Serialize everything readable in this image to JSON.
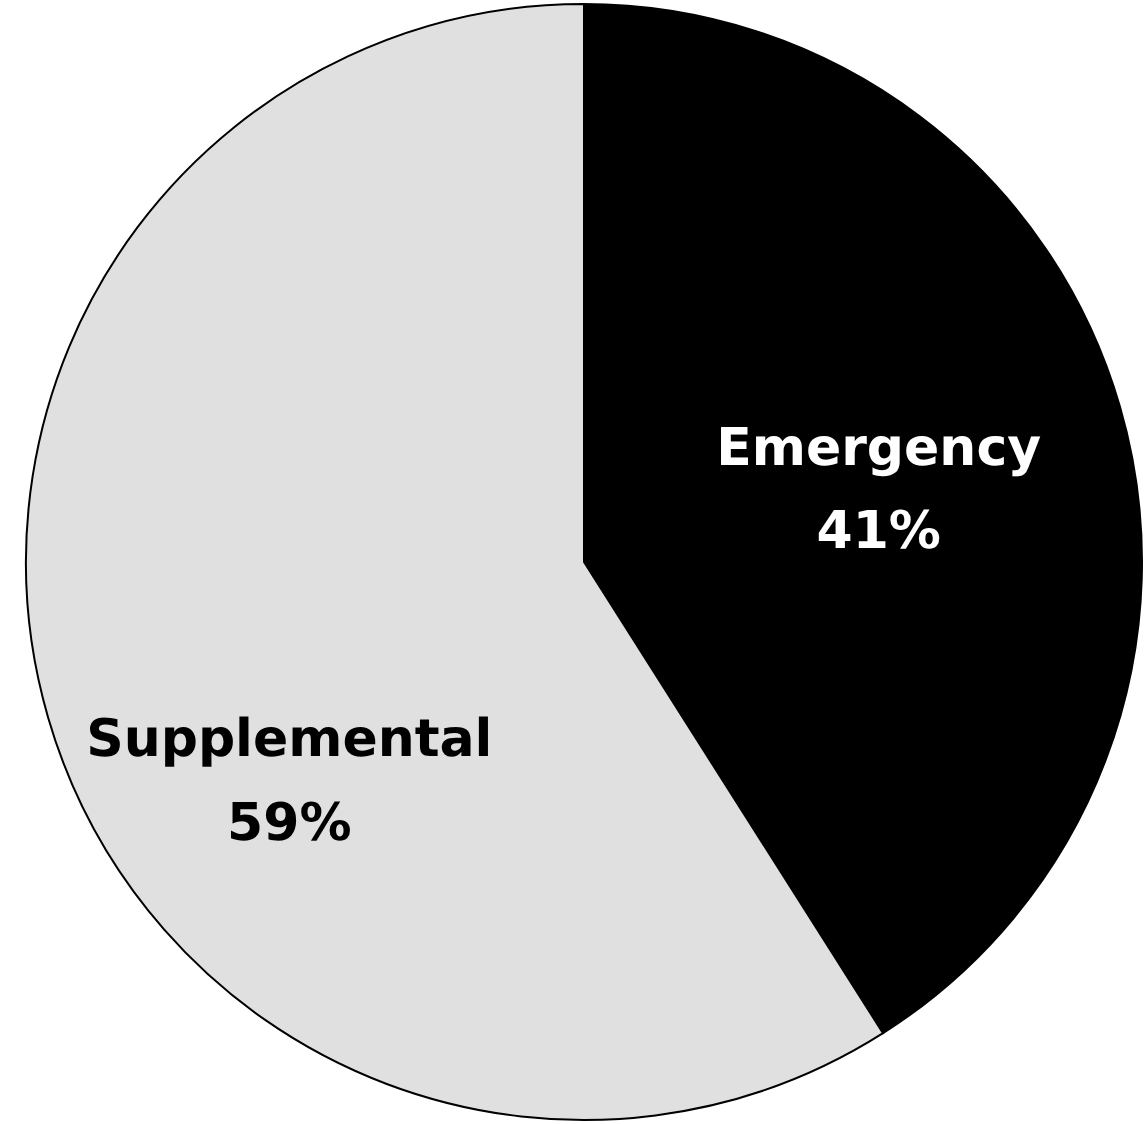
{
  "chart_data": {
    "type": "pie",
    "categories": [
      "Emergency",
      "Supplemental"
    ],
    "values": [
      41,
      59
    ],
    "colors": [
      "#000000",
      "#e0e0e0"
    ],
    "value_labels": [
      "41%",
      "59%"
    ]
  }
}
